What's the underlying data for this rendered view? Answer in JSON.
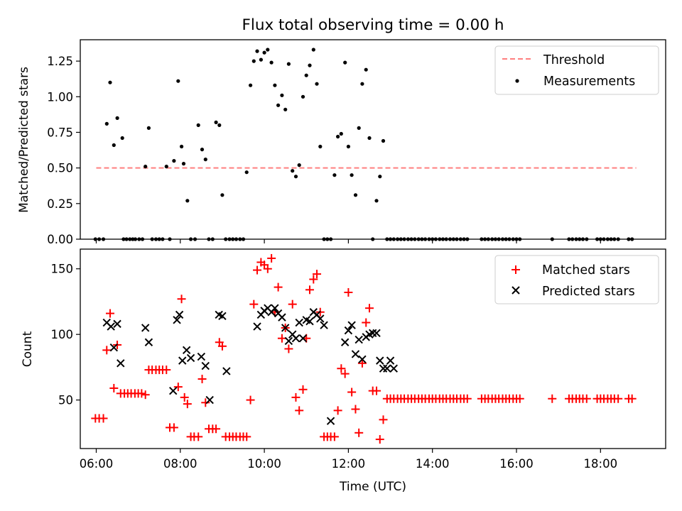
{
  "figure_title": "Flux total observing time = 0.00 h",
  "chart_data": [
    {
      "type": "scatter",
      "panel": "top",
      "title": "Flux total observing time = 0.00 h",
      "xlabel": "",
      "ylabel": "Matched/Predicted stars",
      "xlim": [
        5.62,
        19.55
      ],
      "ylim": [
        0,
        1.4
      ],
      "yticks": [
        0,
        0.25,
        0.5,
        0.75,
        1.0,
        1.25
      ],
      "ytick_labels": [
        "0.00",
        "0.25",
        "0.50",
        "0.75",
        "1.00",
        "1.25"
      ],
      "grid": false,
      "legend_position": "top-right",
      "threshold": {
        "name": "Threshold",
        "value": 0.5,
        "x_range": [
          6.0,
          18.85
        ],
        "color": "#ff7f7f",
        "style": "dashed"
      },
      "series": [
        {
          "name": "Measurements",
          "marker": "dot",
          "color": "#000000",
          "x": [
            5.98,
            6.07,
            6.17,
            6.25,
            6.33,
            6.42,
            6.5,
            6.62,
            6.65,
            6.72,
            6.8,
            6.87,
            6.93,
            7.02,
            7.1,
            7.17,
            7.25,
            7.33,
            7.42,
            7.5,
            7.58,
            7.67,
            7.75,
            7.85,
            7.95,
            8.03,
            8.08,
            8.17,
            8.25,
            8.35,
            8.43,
            8.52,
            8.6,
            8.68,
            8.77,
            8.85,
            8.93,
            9.0,
            9.08,
            9.17,
            9.25,
            9.33,
            9.42,
            9.5,
            9.58,
            9.67,
            9.75,
            9.83,
            9.92,
            10.0,
            10.08,
            10.17,
            10.25,
            10.33,
            10.42,
            10.5,
            10.58,
            10.67,
            10.75,
            10.83,
            10.92,
            11.0,
            11.08,
            11.17,
            11.25,
            11.33,
            11.42,
            11.5,
            11.58,
            11.67,
            11.75,
            11.83,
            11.92,
            12.0,
            12.08,
            12.17,
            12.25,
            12.33,
            12.42,
            12.5,
            12.58,
            12.67,
            12.75,
            12.83,
            12.92,
            13.0,
            13.08,
            13.17,
            13.25,
            13.33,
            13.42,
            13.5,
            13.58,
            13.67,
            13.75,
            13.83,
            13.92,
            14.0,
            14.08,
            14.17,
            14.25,
            14.33,
            14.42,
            14.5,
            14.58,
            14.67,
            14.75,
            14.83,
            15.17,
            15.25,
            15.33,
            15.42,
            15.5,
            15.58,
            15.67,
            15.75,
            15.83,
            15.92,
            16.0,
            16.08,
            16.85,
            17.25,
            17.33,
            17.42,
            17.5,
            17.58,
            17.67,
            17.92,
            18.0,
            18.08,
            18.17,
            18.25,
            18.33,
            18.42,
            18.67,
            18.75
          ],
          "y": [
            0.0,
            0.0,
            0.0,
            0.81,
            1.1,
            0.66,
            0.85,
            0.71,
            0.0,
            0.0,
            0.0,
            0.0,
            0.0,
            0.0,
            0.0,
            0.51,
            0.78,
            0.0,
            0.0,
            0.0,
            0.0,
            0.51,
            0.0,
            0.55,
            1.11,
            0.65,
            0.53,
            0.27,
            0.0,
            0.0,
            0.8,
            0.63,
            0.56,
            0.0,
            0.0,
            0.82,
            0.8,
            0.31,
            0.0,
            0.0,
            0.0,
            0.0,
            0.0,
            0.0,
            0.47,
            1.08,
            1.25,
            1.32,
            1.26,
            1.31,
            1.33,
            1.24,
            1.08,
            0.94,
            1.01,
            0.91,
            1.23,
            0.48,
            0.44,
            0.52,
            1.0,
            1.15,
            1.22,
            1.33,
            1.09,
            0.65,
            0.0,
            0.0,
            0.0,
            0.45,
            0.72,
            0.74,
            1.24,
            0.65,
            0.45,
            0.31,
            0.78,
            1.09,
            1.19,
            0.71,
            0.0,
            0.27,
            0.44,
            0.69,
            0.0,
            0.0,
            0.0,
            0.0,
            0.0,
            0.0,
            0.0,
            0.0,
            0.0,
            0.0,
            0.0,
            0.0,
            0.0,
            0.0,
            0.0,
            0.0,
            0.0,
            0.0,
            0.0,
            0.0,
            0.0,
            0.0,
            0.0,
            0.0,
            0.0,
            0.0,
            0.0,
            0.0,
            0.0,
            0.0,
            0.0,
            0.0,
            0.0,
            0.0,
            0.0,
            0.0,
            0.0,
            0.0,
            0.0,
            0.0,
            0.0,
            0.0,
            0.0,
            0.0,
            0.0,
            0.0,
            0.0,
            0.0,
            0.0,
            0.0,
            0.0,
            0.0
          ]
        }
      ],
      "legend": [
        "Threshold",
        "Measurements"
      ]
    },
    {
      "type": "scatter",
      "panel": "bottom",
      "xlabel": "Time (UTC)",
      "ylabel": "Count",
      "xlim": [
        5.62,
        19.55
      ],
      "ylim": [
        13,
        165
      ],
      "xticks": [
        6,
        8,
        10,
        12,
        14,
        16,
        18
      ],
      "xtick_labels": [
        "06:00",
        "08:00",
        "10:00",
        "12:00",
        "14:00",
        "16:00",
        "18:00"
      ],
      "yticks": [
        50,
        100,
        150
      ],
      "ytick_labels": [
        "50",
        "100",
        "150"
      ],
      "grid": false,
      "legend_position": "top-right",
      "series": [
        {
          "name": "Matched stars",
          "marker": "plus",
          "color": "#ff0000",
          "x": [
            5.98,
            6.07,
            6.17,
            6.25,
            6.33,
            6.42,
            6.5,
            6.58,
            6.67,
            6.75,
            6.83,
            6.92,
            7.0,
            7.08,
            7.17,
            7.25,
            7.33,
            7.42,
            7.5,
            7.58,
            7.67,
            7.75,
            7.85,
            7.95,
            8.03,
            8.1,
            8.17,
            8.25,
            8.33,
            8.43,
            8.52,
            8.6,
            8.68,
            8.77,
            8.85,
            8.93,
            9.0,
            9.08,
            9.17,
            9.25,
            9.33,
            9.42,
            9.5,
            9.58,
            9.67,
            9.75,
            9.83,
            9.92,
            10.0,
            10.08,
            10.17,
            10.25,
            10.33,
            10.42,
            10.5,
            10.58,
            10.67,
            10.75,
            10.83,
            10.92,
            11.0,
            11.08,
            11.17,
            11.25,
            11.33,
            11.42,
            11.5,
            11.58,
            11.67,
            11.75,
            11.83,
            11.92,
            12.0,
            12.08,
            12.17,
            12.25,
            12.33,
            12.42,
            12.5,
            12.58,
            12.67,
            12.75,
            12.83,
            12.92,
            13.0,
            13.08,
            13.17,
            13.25,
            13.33,
            13.42,
            13.5,
            13.58,
            13.67,
            13.75,
            13.83,
            13.92,
            14.0,
            14.08,
            14.17,
            14.25,
            14.33,
            14.42,
            14.5,
            14.58,
            14.67,
            14.75,
            14.83,
            15.17,
            15.25,
            15.33,
            15.42,
            15.5,
            15.58,
            15.67,
            15.75,
            15.83,
            15.92,
            16.0,
            16.08,
            16.85,
            17.25,
            17.33,
            17.42,
            17.5,
            17.58,
            17.67,
            17.92,
            18.0,
            18.08,
            18.17,
            18.25,
            18.33,
            18.42,
            18.67,
            18.75
          ],
          "y": [
            36,
            36,
            36,
            88,
            116,
            59,
            92,
            55,
            55,
            55,
            55,
            55,
            55,
            55,
            54,
            73,
            73,
            73,
            73,
            73,
            73,
            29,
            29,
            60,
            127,
            52,
            47,
            22,
            22,
            22,
            66,
            48,
            28,
            28,
            28,
            94,
            91,
            22,
            22,
            22,
            22,
            22,
            22,
            22,
            50,
            123,
            149,
            155,
            153,
            150,
            158,
            117,
            136,
            97,
            105,
            89,
            123,
            52,
            42,
            58,
            97,
            134,
            142,
            146,
            117,
            22,
            22,
            22,
            22,
            42,
            74,
            70,
            132,
            56,
            43,
            25,
            78,
            109,
            120,
            57,
            57,
            20,
            35,
            51,
            51,
            51,
            51,
            51,
            51,
            51,
            51,
            51,
            51,
            51,
            51,
            51,
            51,
            51,
            51,
            51,
            51,
            51,
            51,
            51,
            51,
            51,
            51,
            51,
            51,
            51,
            51,
            51,
            51,
            51,
            51,
            51,
            51,
            51,
            51,
            51,
            51,
            51,
            51,
            51,
            51,
            51,
            51,
            51,
            51,
            51,
            51,
            51,
            51,
            51,
            51
          ]
        },
        {
          "name": "Predicted stars",
          "marker": "x",
          "color": "#000000",
          "x": [
            6.25,
            6.35,
            6.42,
            6.5,
            6.58,
            7.17,
            7.25,
            7.83,
            7.92,
            7.98,
            8.05,
            8.15,
            8.25,
            8.5,
            8.6,
            8.7,
            8.92,
            9.0,
            9.1,
            9.83,
            9.92,
            10.0,
            10.08,
            10.17,
            10.25,
            10.33,
            10.42,
            10.5,
            10.58,
            10.67,
            10.75,
            10.83,
            10.92,
            11.0,
            11.08,
            11.17,
            11.25,
            11.33,
            11.42,
            11.58,
            11.92,
            12.0,
            12.08,
            12.17,
            12.25,
            12.33,
            12.42,
            12.5,
            12.58,
            12.67,
            12.75,
            12.83,
            12.92,
            13.0,
            13.08
          ],
          "y": [
            109,
            106,
            90,
            108,
            78,
            105,
            94,
            57,
            111,
            115,
            80,
            88,
            82,
            83,
            76,
            50,
            115,
            114,
            72,
            106,
            115,
            118,
            120,
            117,
            120,
            116,
            113,
            105,
            95,
            100,
            97,
            109,
            97,
            111,
            110,
            117,
            115,
            112,
            107,
            34,
            94,
            103,
            107,
            85,
            96,
            81,
            98,
            100,
            101,
            101,
            80,
            74,
            74,
            80,
            74
          ]
        }
      ],
      "legend": [
        "Matched stars",
        "Predicted stars"
      ]
    }
  ]
}
